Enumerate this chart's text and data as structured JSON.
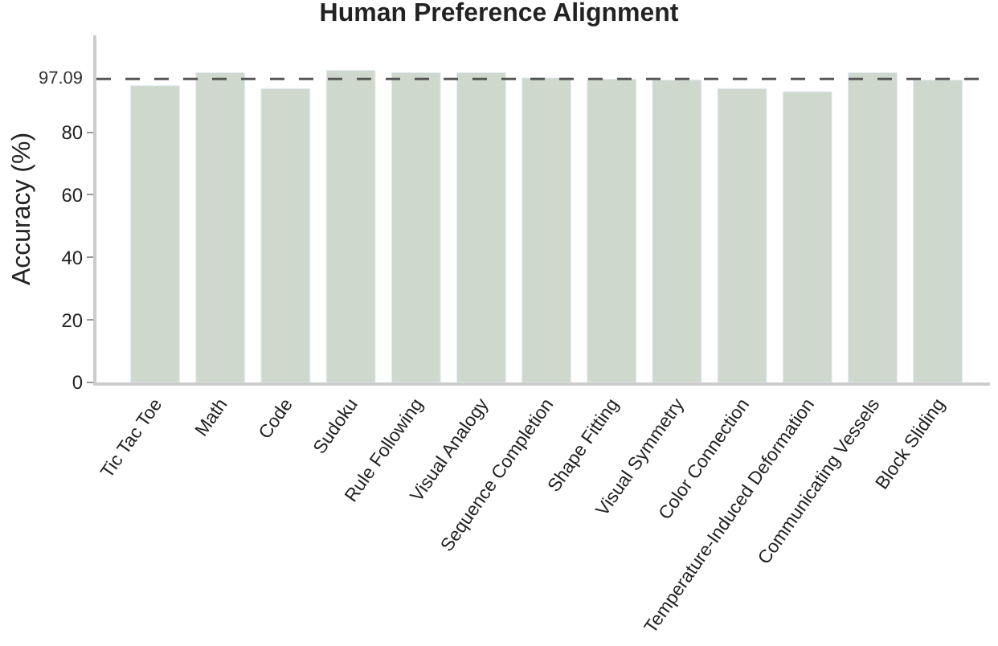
{
  "chart_data": {
    "type": "bar",
    "title": "Human Preference Alignment",
    "ylabel": "Accuracy (%)",
    "categories": [
      "Tic Tac Toe",
      "Math",
      "Code",
      "Sudoku",
      "Rule Following",
      "Visual Analogy",
      "Sequence Completion",
      "Shape Fitting",
      "Visual Symmetry",
      "Color Connection",
      "Temperature-Induced Deformation",
      "Communicating Vessels",
      "Block Sliding"
    ],
    "values": [
      94.9,
      99.1,
      94.0,
      99.8,
      99.1,
      99.1,
      97.4,
      97.0,
      96.7,
      94.0,
      93.0,
      99.1,
      96.7
    ],
    "color": "#cfd8cc",
    "ylim": [
      0,
      111
    ],
    "yticks": [
      0,
      20,
      40,
      60,
      80
    ],
    "ref_lines": [
      {
        "axis": "y",
        "value": 97.09,
        "label": "97.09",
        "color": "#555555",
        "line_style": "dashed"
      }
    ]
  }
}
